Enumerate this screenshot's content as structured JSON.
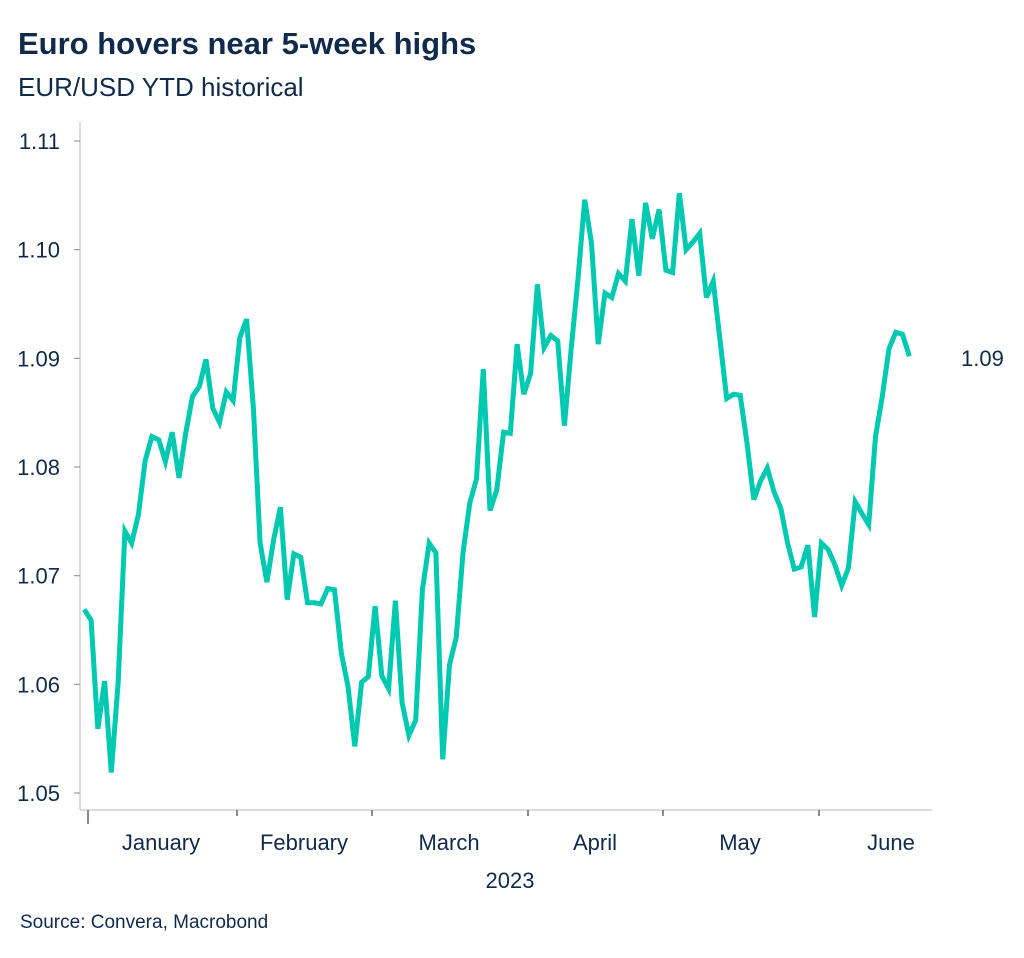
{
  "title": "Euro hovers near 5-week highs",
  "subtitle": "EUR/USD YTD historical",
  "source": "Source: Convera, Macrobond",
  "chart_data": {
    "type": "line",
    "title": "Euro hovers near 5-week highs",
    "subtitle": "EUR/USD YTD historical",
    "xlabel": "2023",
    "ylabel": "",
    "ylim": [
      1.05,
      1.11
    ],
    "yticks": [
      "1.05",
      "1.06",
      "1.07",
      "1.08",
      "1.09",
      "1.10",
      "1.11"
    ],
    "xticks": [
      "January",
      "February",
      "March",
      "April",
      "May",
      "June"
    ],
    "grid": false,
    "legend": "none",
    "line_color": "#00C9B1",
    "last_value_label": "1.09",
    "series": [
      {
        "values": [
          1.0669,
          1.0659,
          1.0559,
          1.0603,
          1.0519,
          1.0601,
          1.0741,
          1.073,
          1.0756,
          1.0806,
          1.0828,
          1.0825,
          1.0805,
          1.0832,
          1.079,
          1.0831,
          1.0865,
          1.0874,
          1.0899,
          1.0854,
          1.0841,
          1.0869,
          1.0861,
          1.0919,
          1.0936,
          1.0854,
          1.073,
          1.0694,
          1.0733,
          1.0763,
          1.0678,
          1.072,
          1.0717,
          1.0675,
          1.0675,
          1.0674,
          1.0688,
          1.0687,
          1.0629,
          1.0598,
          1.0543,
          1.0602,
          1.0607,
          1.0672,
          1.0608,
          1.0596,
          1.0677,
          1.0583,
          1.0553,
          1.0567,
          1.0687,
          1.073,
          1.0721,
          1.0531,
          1.0618,
          1.0643,
          1.0721,
          1.0767,
          1.0789,
          1.089,
          1.076,
          1.0779,
          1.0832,
          1.0831,
          1.0913,
          1.0867,
          1.0886,
          1.0968,
          1.091,
          1.0921,
          1.0916,
          1.0838,
          1.0909,
          1.0972,
          1.1046,
          1.1006,
          1.0913,
          1.096,
          1.0956,
          1.0978,
          1.0971,
          1.1028,
          1.0976,
          1.1043,
          1.101,
          1.1037,
          1.0981,
          1.0979,
          1.1052,
          1.1,
          1.1007,
          1.1015,
          1.0956,
          1.0971,
          1.0917,
          1.0863,
          1.0867,
          1.0866,
          1.0822,
          1.077,
          1.0787,
          1.0799,
          1.0777,
          1.0762,
          1.073,
          1.0706,
          1.0708,
          1.0728,
          1.0662,
          1.073,
          1.0724,
          1.071,
          1.0691,
          1.0707,
          1.0768,
          1.0757,
          1.0747,
          1.0828,
          1.0865,
          1.0909,
          1.0924,
          1.0922,
          1.0902
        ]
      }
    ]
  }
}
